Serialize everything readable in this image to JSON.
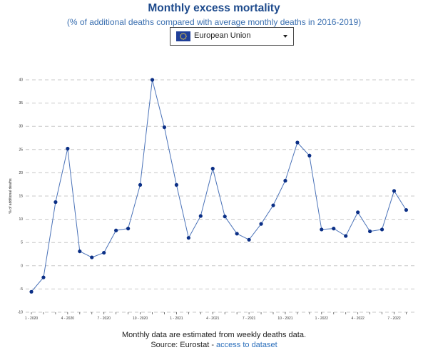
{
  "header": {
    "title": "Monthly excess mortality",
    "subtitle": "(% of additional deaths compared with average monthly deaths in 2016-2019)"
  },
  "selector": {
    "selected": "European Union",
    "icon": "eu-flag-icon"
  },
  "footer": {
    "note": "Monthly data are estimated from weekly deaths data.",
    "source_prefix": "Source: Eurostat - ",
    "source_link": "access to dataset"
  },
  "colors": {
    "title": "#1d4a8c",
    "subtitle": "#3a6fb0",
    "line": "#4a72b8",
    "point": "#0b2f86",
    "grid": "#c8c8c8",
    "link": "#2a6ebb"
  },
  "chart_data": {
    "type": "line",
    "ylabel": "% of additional deaths",
    "ylim": [
      -10,
      40
    ],
    "yticks": [
      "40",
      "35",
      "30",
      "25",
      "20",
      "15",
      "10",
      "5",
      "0",
      "-5",
      "-10"
    ],
    "ytick_values": [
      40,
      35,
      30,
      25,
      20,
      15,
      10,
      5,
      0,
      -5,
      -10
    ],
    "grid": true,
    "xtick_labels": [
      "1 - 2020",
      "4 - 2020",
      "7 - 2020",
      "10 - 2020",
      "1 - 2021",
      "4 - 2021",
      "7 - 2021",
      "10 - 2021",
      "1 - 2022",
      "4 - 2022",
      "7 - 2022"
    ],
    "xtick_indices": [
      0,
      3,
      6,
      9,
      12,
      15,
      18,
      21,
      24,
      27,
      30
    ],
    "series": [
      {
        "values": [
          -5.6,
          -2.5,
          13.7,
          25.2,
          3.1,
          1.8,
          2.8,
          7.6,
          8.0,
          17.4,
          40.0,
          29.8,
          17.4,
          6.0,
          10.7,
          20.9,
          10.6,
          6.9,
          5.6,
          9.0,
          13.0,
          18.3,
          26.5,
          23.7,
          7.8,
          8.0,
          6.4,
          11.5,
          7.4,
          7.8,
          16.1,
          12.0
        ]
      }
    ]
  }
}
